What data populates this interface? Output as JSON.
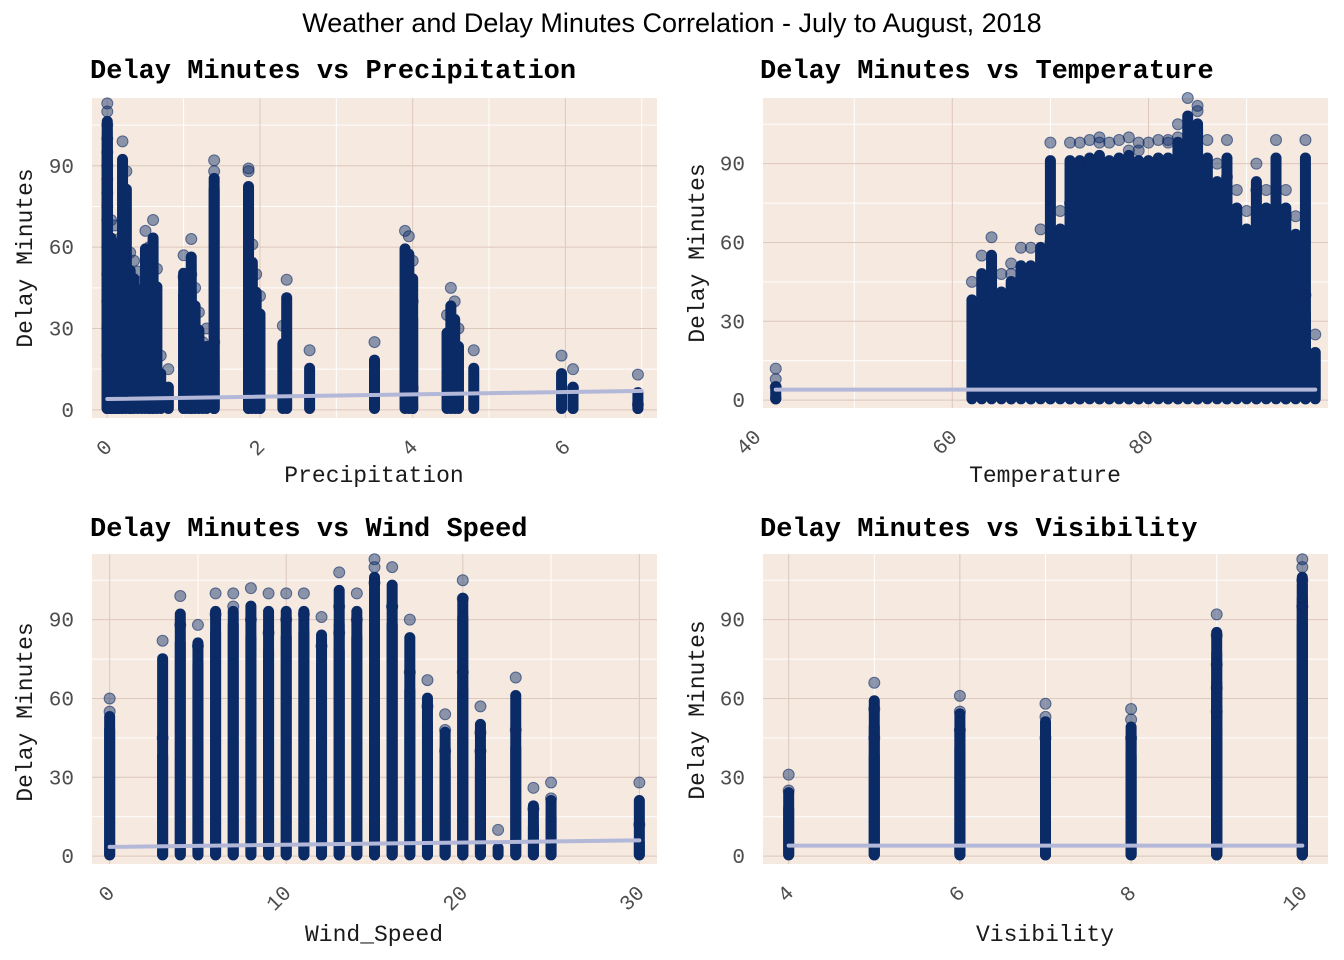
{
  "figure": {
    "title": "Weather and Delay Minutes Correlation - July to August, 2018",
    "panel_background": "#f5e9e0",
    "major_grid_color": "#ddc8bc",
    "minor_grid_color": "#ffffff",
    "point_color": "#0b2b66",
    "trend_color": "#b3b8d9"
  },
  "chart_data": [
    {
      "type": "scatter",
      "title": "Delay Minutes vs Precipitation",
      "xlabel": "Precipitation",
      "ylabel": "Delay Minutes",
      "xlim": [
        -0.2,
        7.2
      ],
      "ylim": [
        -3,
        115
      ],
      "xticks": [
        0,
        2,
        4,
        6
      ],
      "yticks": [
        0,
        30,
        60,
        90
      ],
      "grid": true,
      "trend": {
        "x": [
          0,
          7
        ],
        "y": [
          4,
          7
        ]
      },
      "points": {
        "x": [
          0,
          0,
          0,
          0,
          0,
          0,
          0,
          0,
          0,
          0,
          0,
          0,
          0,
          0,
          0,
          0.05,
          0.05,
          0.05,
          0.1,
          0.1,
          0.1,
          0.1,
          0.15,
          0.15,
          0.2,
          0.2,
          0.25,
          0.3,
          0.3,
          0.3,
          0.35,
          0.4,
          0.45,
          0.5,
          0.55,
          0.55,
          0.6,
          0.65,
          0.7,
          0.3,
          1.0,
          1.0,
          1.05,
          1.1,
          1.1,
          1.1,
          1.15,
          1.2,
          1.25,
          1.4,
          1.4,
          1.85,
          1.85,
          1.9,
          1.95,
          2.0,
          2.3,
          2.35,
          2.65,
          3.5,
          3.9,
          3.95,
          4.0,
          4.0,
          4.45,
          4.5,
          4.55,
          4.6,
          4.8,
          5.95,
          6.1,
          6.95,
          6.95,
          1.3,
          1.4,
          0.6,
          0.8,
          2.0,
          4.0,
          6.1
        ],
        "y": [
          113,
          110,
          105,
          100,
          95,
          90,
          85,
          80,
          75,
          70,
          60,
          50,
          40,
          30,
          20,
          70,
          60,
          5,
          68,
          50,
          40,
          20,
          63,
          35,
          99,
          45,
          88,
          58,
          40,
          25,
          55,
          51,
          47,
          66,
          60,
          30,
          70,
          52,
          20,
          10,
          57,
          49,
          40,
          63,
          50,
          30,
          45,
          36,
          25,
          92,
          88,
          89,
          88,
          61,
          50,
          42,
          31,
          48,
          22,
          25,
          66,
          64,
          55,
          40,
          35,
          45,
          40,
          30,
          22,
          20,
          8,
          13,
          2,
          30,
          25,
          10,
          15,
          5,
          8,
          15
        ]
      }
    },
    {
      "type": "scatter",
      "title": "Delay Minutes vs Temperature",
      "xlabel": "Temperature",
      "ylabel": "Delay Minutes",
      "xlim": [
        40.7,
        98.3
      ],
      "ylim": [
        -3,
        115
      ],
      "xticks": [
        40,
        60,
        80
      ],
      "yticks": [
        0,
        30,
        60,
        90
      ],
      "grid": true,
      "trend": {
        "x": [
          42,
          97
        ],
        "y": [
          4,
          4
        ]
      },
      "points": {
        "x": [
          42,
          42,
          42,
          62,
          63,
          64,
          65,
          66,
          67,
          68,
          68,
          69,
          70,
          71,
          72,
          72,
          73,
          74,
          75,
          75,
          76,
          77,
          78,
          78,
          79,
          80,
          81,
          82,
          82,
          83,
          84,
          85,
          85,
          86,
          87,
          88,
          89,
          90,
          91,
          92,
          93,
          94,
          95,
          96,
          96,
          97,
          73,
          76,
          79,
          83,
          85,
          88,
          91,
          94,
          70,
          66
        ],
        "y": [
          12,
          8,
          5,
          45,
          55,
          62,
          48,
          52,
          58,
          58,
          50,
          65,
          98,
          72,
          98,
          75,
          98,
          99,
          100,
          98,
          98,
          99,
          100,
          95,
          98,
          98,
          99,
          98,
          99,
          105,
          115,
          112,
          110,
          99,
          90,
          99,
          80,
          72,
          90,
          80,
          99,
          80,
          70,
          99,
          40,
          25,
          90,
          85,
          95,
          100,
          90,
          85,
          80,
          70,
          60,
          48
        ]
      }
    },
    {
      "type": "scatter",
      "title": "Delay Minutes vs Wind Speed",
      "xlabel": "Wind_Speed",
      "ylabel": "Delay Minutes",
      "xlim": [
        -1.0,
        31.0
      ],
      "ylim": [
        -3,
        115
      ],
      "xticks": [
        0,
        10,
        20,
        30
      ],
      "yticks": [
        0,
        30,
        60,
        90
      ],
      "grid": true,
      "trend": {
        "x": [
          0,
          30
        ],
        "y": [
          3.5,
          6
        ]
      },
      "points": {
        "x": [
          0,
          0,
          3,
          3,
          4,
          4,
          5,
          5,
          6,
          6,
          7,
          7,
          8,
          8,
          9,
          9,
          10,
          10,
          11,
          11,
          12,
          12,
          13,
          13,
          14,
          14,
          15,
          15,
          16,
          16,
          17,
          17,
          18,
          18,
          19,
          19,
          20,
          20,
          20,
          21,
          21,
          22,
          23,
          23,
          24,
          24,
          25,
          25,
          30,
          30,
          13,
          15,
          16,
          19,
          21
        ],
        "y": [
          60,
          55,
          82,
          45,
          99,
          88,
          88,
          80,
          100,
          92,
          100,
          95,
          102,
          90,
          100,
          85,
          100,
          90,
          100,
          92,
          91,
          80,
          108,
          95,
          100,
          90,
          113,
          110,
          110,
          95,
          90,
          70,
          67,
          57,
          48,
          40,
          105,
          98,
          70,
          57,
          40,
          10,
          68,
          48,
          26,
          18,
          28,
          22,
          28,
          12,
          85,
          104,
          95,
          54,
          47
        ]
      }
    },
    {
      "type": "scatter",
      "title": "Delay Minutes vs Visibility",
      "xlabel": "Visibility",
      "ylabel": "Delay Minutes",
      "xlim": [
        3.7,
        10.3
      ],
      "ylim": [
        -3,
        115
      ],
      "xticks": [
        4,
        6,
        8,
        10
      ],
      "yticks": [
        0,
        30,
        60,
        90
      ],
      "grid": true,
      "trend": {
        "x": [
          4,
          10
        ],
        "y": [
          4,
          4
        ]
      },
      "points": {
        "x": [
          4,
          4,
          5,
          5,
          5,
          6,
          6,
          6,
          7,
          7,
          7,
          8,
          8,
          8,
          9,
          9,
          9,
          9,
          9,
          10,
          10,
          10,
          10
        ],
        "y": [
          31,
          25,
          66,
          56,
          45,
          61,
          55,
          48,
          58,
          53,
          45,
          56,
          52,
          45,
          92,
          84,
          73,
          64,
          55,
          113,
          110,
          105,
          95
        ]
      }
    }
  ]
}
